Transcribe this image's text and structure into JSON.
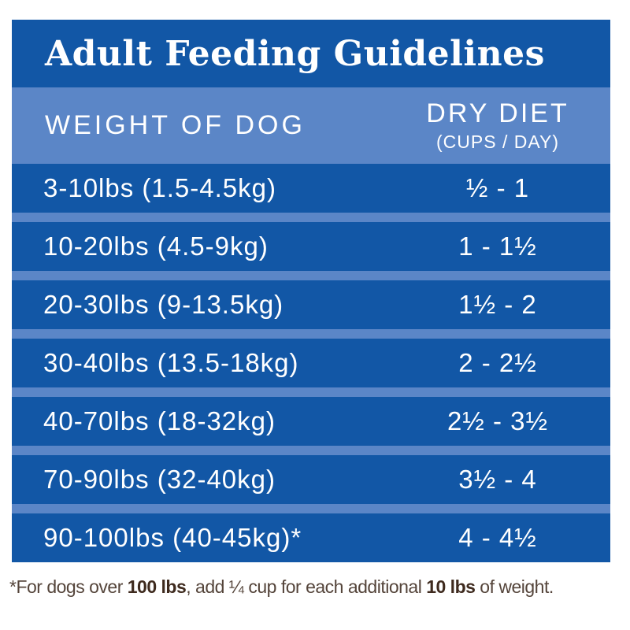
{
  "title": "Adult Feeding Guidelines",
  "table": {
    "header": {
      "weight": "WEIGHT OF DOG",
      "diet": "DRY DIET",
      "diet_sub": "(CUPS / DAY)"
    },
    "rows": [
      {
        "weight": "3-10lbs (1.5-4.5kg)",
        "cups": "½ - 1"
      },
      {
        "weight": "10-20lbs (4.5-9kg)",
        "cups": "1 - 1½"
      },
      {
        "weight": "20-30lbs (9-13.5kg)",
        "cups": "1½ - 2"
      },
      {
        "weight": "30-40lbs (13.5-18kg)",
        "cups": "2 - 2½"
      },
      {
        "weight": "40-70lbs (18-32kg)",
        "cups": "2½ - 3½"
      },
      {
        "weight": "70-90lbs (32-40kg)",
        "cups": "3½ - 4"
      },
      {
        "weight": "90-100lbs (40-45kg)*",
        "cups": "4 - 4½"
      }
    ]
  },
  "footnote": {
    "part1": "*For dogs over ",
    "bold1": "100 lbs",
    "part2": ", add ¼ cup for each additional ",
    "bold2": "10 lbs",
    "part3": " of weight."
  },
  "colors": {
    "dark_blue": "#1257a6",
    "light_blue": "#5b86c7",
    "text_white": "#ffffff",
    "footnote_brown": "#54443a",
    "footnote_bold_brown": "#3e2a1e"
  }
}
